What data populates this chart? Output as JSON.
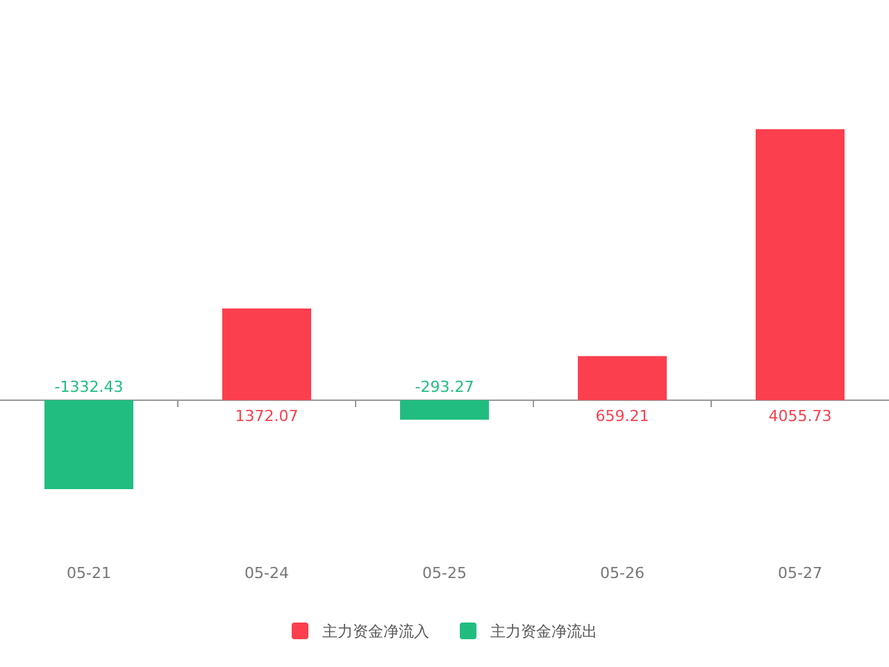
{
  "chart_data": {
    "type": "bar",
    "categories": [
      "05-21",
      "05-24",
      "05-25",
      "05-26",
      "05-27"
    ],
    "series": [
      {
        "name": "主力资金净流入",
        "color": "#fc3f4e",
        "values": [
          null,
          1372.07,
          null,
          659.21,
          4055.73
        ]
      },
      {
        "name": "主力资金净流出",
        "color": "#21bd80",
        "values": [
          -1332.43,
          null,
          -293.27,
          null,
          null
        ]
      }
    ],
    "data_labels": true,
    "legend": "bottom"
  }
}
